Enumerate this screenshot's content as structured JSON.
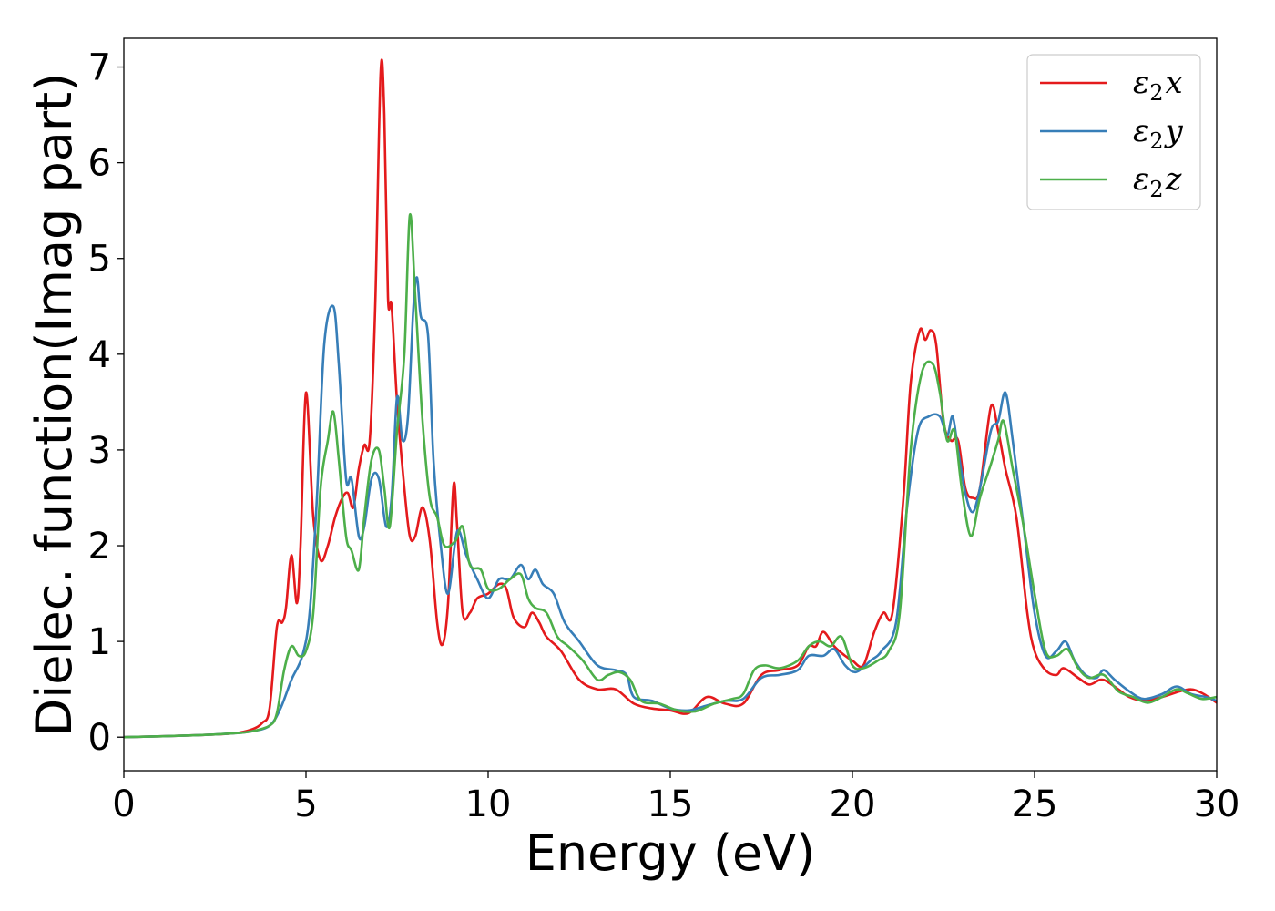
{
  "chart_data": {
    "type": "line",
    "xlabel": "Energy (eV)",
    "ylabel": "Dielec. function(Imag part)",
    "xlim": [
      0,
      30
    ],
    "ylim": [
      -0.35,
      7.3
    ],
    "xticks": [
      0,
      5,
      10,
      15,
      20,
      25,
      30
    ],
    "yticks": [
      0,
      1,
      2,
      3,
      4,
      5,
      6,
      7
    ],
    "xtick_labels": [
      "0",
      "5",
      "10",
      "15",
      "20",
      "25",
      "30"
    ],
    "ytick_labels": [
      "0",
      "1",
      "2",
      "3",
      "4",
      "5",
      "6",
      "7"
    ],
    "grid": false,
    "legend": "top-right",
    "series": [
      {
        "name": "ε₂x",
        "legend_base": "ε",
        "legend_sub": "2",
        "legend_tail": "x",
        "color": "#e41a1c",
        "points": [
          [
            0,
            0
          ],
          [
            2,
            0.02
          ],
          [
            3,
            0.04
          ],
          [
            3.5,
            0.08
          ],
          [
            3.8,
            0.15
          ],
          [
            4.0,
            0.3
          ],
          [
            4.2,
            1.15
          ],
          [
            4.35,
            1.2
          ],
          [
            4.45,
            1.35
          ],
          [
            4.6,
            1.9
          ],
          [
            4.75,
            1.4
          ],
          [
            4.85,
            2.0
          ],
          [
            5.0,
            3.6
          ],
          [
            5.2,
            2.3
          ],
          [
            5.4,
            1.85
          ],
          [
            5.6,
            2.0
          ],
          [
            5.8,
            2.3
          ],
          [
            6.0,
            2.5
          ],
          [
            6.15,
            2.55
          ],
          [
            6.3,
            2.4
          ],
          [
            6.45,
            2.8
          ],
          [
            6.6,
            3.05
          ],
          [
            6.75,
            3.1
          ],
          [
            6.9,
            4.5
          ],
          [
            7.05,
            6.95
          ],
          [
            7.15,
            6.5
          ],
          [
            7.25,
            4.6
          ],
          [
            7.35,
            4.5
          ],
          [
            7.5,
            3.5
          ],
          [
            7.7,
            2.6
          ],
          [
            7.85,
            2.1
          ],
          [
            8.0,
            2.1
          ],
          [
            8.2,
            2.4
          ],
          [
            8.4,
            2.05
          ],
          [
            8.6,
            1.2
          ],
          [
            8.75,
            0.97
          ],
          [
            8.9,
            1.4
          ],
          [
            9.05,
            2.63
          ],
          [
            9.15,
            2.2
          ],
          [
            9.3,
            1.3
          ],
          [
            9.5,
            1.3
          ],
          [
            9.7,
            1.45
          ],
          [
            10.0,
            1.5
          ],
          [
            10.3,
            1.6
          ],
          [
            10.5,
            1.55
          ],
          [
            10.7,
            1.25
          ],
          [
            11.0,
            1.15
          ],
          [
            11.2,
            1.3
          ],
          [
            11.4,
            1.2
          ],
          [
            11.6,
            1.05
          ],
          [
            12.0,
            0.9
          ],
          [
            12.5,
            0.6
          ],
          [
            13.0,
            0.5
          ],
          [
            13.5,
            0.5
          ],
          [
            14.0,
            0.35
          ],
          [
            14.5,
            0.3
          ],
          [
            15.0,
            0.28
          ],
          [
            15.5,
            0.25
          ],
          [
            16.0,
            0.42
          ],
          [
            16.5,
            0.35
          ],
          [
            17.0,
            0.35
          ],
          [
            17.5,
            0.65
          ],
          [
            18.0,
            0.7
          ],
          [
            18.5,
            0.75
          ],
          [
            18.8,
            0.95
          ],
          [
            19.0,
            0.95
          ],
          [
            19.2,
            1.1
          ],
          [
            19.5,
            0.95
          ],
          [
            19.8,
            0.85
          ],
          [
            20.0,
            0.8
          ],
          [
            20.3,
            0.75
          ],
          [
            20.6,
            1.1
          ],
          [
            20.85,
            1.3
          ],
          [
            21.1,
            1.3
          ],
          [
            21.4,
            2.5
          ],
          [
            21.6,
            3.7
          ],
          [
            21.85,
            4.25
          ],
          [
            22.0,
            4.15
          ],
          [
            22.15,
            4.25
          ],
          [
            22.3,
            4.1
          ],
          [
            22.5,
            3.3
          ],
          [
            22.7,
            3.1
          ],
          [
            22.9,
            3.1
          ],
          [
            23.1,
            2.6
          ],
          [
            23.3,
            2.5
          ],
          [
            23.5,
            2.6
          ],
          [
            23.8,
            3.45
          ],
          [
            24.0,
            3.2
          ],
          [
            24.2,
            2.8
          ],
          [
            24.5,
            2.3
          ],
          [
            24.8,
            1.3
          ],
          [
            25.0,
            0.9
          ],
          [
            25.3,
            0.7
          ],
          [
            25.6,
            0.65
          ],
          [
            25.8,
            0.72
          ],
          [
            26.2,
            0.62
          ],
          [
            26.5,
            0.55
          ],
          [
            26.8,
            0.6
          ],
          [
            27.0,
            0.58
          ],
          [
            27.3,
            0.5
          ],
          [
            27.6,
            0.42
          ],
          [
            28.0,
            0.38
          ],
          [
            28.5,
            0.42
          ],
          [
            29.0,
            0.48
          ],
          [
            29.3,
            0.5
          ],
          [
            29.6,
            0.46
          ],
          [
            30,
            0.36
          ]
        ]
      },
      {
        "name": "ε₂y",
        "legend_base": "ε",
        "legend_sub": "2",
        "legend_tail": "y",
        "color": "#377eb8",
        "points": [
          [
            0,
            0
          ],
          [
            2,
            0.02
          ],
          [
            3,
            0.04
          ],
          [
            3.5,
            0.06
          ],
          [
            4.0,
            0.12
          ],
          [
            4.3,
            0.3
          ],
          [
            4.6,
            0.6
          ],
          [
            4.9,
            0.85
          ],
          [
            5.1,
            1.3
          ],
          [
            5.3,
            2.5
          ],
          [
            5.5,
            4.1
          ],
          [
            5.75,
            4.5
          ],
          [
            5.9,
            3.9
          ],
          [
            6.1,
            2.7
          ],
          [
            6.25,
            2.7
          ],
          [
            6.45,
            2.1
          ],
          [
            6.6,
            2.2
          ],
          [
            6.8,
            2.7
          ],
          [
            7.0,
            2.7
          ],
          [
            7.2,
            2.2
          ],
          [
            7.35,
            2.5
          ],
          [
            7.5,
            3.55
          ],
          [
            7.65,
            3.1
          ],
          [
            7.8,
            3.35
          ],
          [
            7.95,
            4.5
          ],
          [
            8.05,
            4.8
          ],
          [
            8.15,
            4.4
          ],
          [
            8.35,
            4.2
          ],
          [
            8.5,
            2.9
          ],
          [
            8.7,
            2.0
          ],
          [
            8.9,
            1.5
          ],
          [
            9.15,
            2.15
          ],
          [
            9.4,
            1.9
          ],
          [
            9.7,
            1.65
          ],
          [
            10.0,
            1.45
          ],
          [
            10.3,
            1.65
          ],
          [
            10.6,
            1.65
          ],
          [
            10.9,
            1.8
          ],
          [
            11.1,
            1.65
          ],
          [
            11.3,
            1.75
          ],
          [
            11.5,
            1.6
          ],
          [
            11.8,
            1.5
          ],
          [
            12.1,
            1.2
          ],
          [
            12.5,
            1.0
          ],
          [
            13.0,
            0.75
          ],
          [
            13.5,
            0.7
          ],
          [
            13.8,
            0.65
          ],
          [
            14.0,
            0.42
          ],
          [
            14.5,
            0.38
          ],
          [
            15.0,
            0.3
          ],
          [
            15.5,
            0.28
          ],
          [
            16.0,
            0.33
          ],
          [
            16.5,
            0.38
          ],
          [
            17.0,
            0.4
          ],
          [
            17.5,
            0.62
          ],
          [
            18.0,
            0.65
          ],
          [
            18.5,
            0.7
          ],
          [
            18.8,
            0.85
          ],
          [
            19.2,
            0.85
          ],
          [
            19.5,
            0.92
          ],
          [
            19.8,
            0.75
          ],
          [
            20.1,
            0.68
          ],
          [
            20.5,
            0.8
          ],
          [
            20.8,
            0.9
          ],
          [
            21.2,
            1.2
          ],
          [
            21.5,
            2.4
          ],
          [
            21.8,
            3.2
          ],
          [
            22.1,
            3.35
          ],
          [
            22.4,
            3.35
          ],
          [
            22.6,
            3.15
          ],
          [
            22.75,
            3.35
          ],
          [
            22.9,
            3.0
          ],
          [
            23.1,
            2.55
          ],
          [
            23.3,
            2.35
          ],
          [
            23.5,
            2.6
          ],
          [
            23.8,
            3.2
          ],
          [
            24.0,
            3.3
          ],
          [
            24.2,
            3.6
          ],
          [
            24.4,
            3.1
          ],
          [
            24.7,
            2.2
          ],
          [
            25.0,
            1.3
          ],
          [
            25.3,
            0.85
          ],
          [
            25.6,
            0.9
          ],
          [
            25.85,
            1.0
          ],
          [
            26.1,
            0.8
          ],
          [
            26.4,
            0.65
          ],
          [
            26.7,
            0.62
          ],
          [
            26.9,
            0.7
          ],
          [
            27.2,
            0.6
          ],
          [
            27.6,
            0.48
          ],
          [
            28.0,
            0.4
          ],
          [
            28.5,
            0.45
          ],
          [
            28.9,
            0.53
          ],
          [
            29.3,
            0.45
          ],
          [
            29.7,
            0.42
          ],
          [
            30,
            0.38
          ]
        ]
      },
      {
        "name": "ε₂z",
        "legend_base": "ε",
        "legend_sub": "2",
        "legend_tail": "z",
        "color": "#4daf4a",
        "points": [
          [
            0,
            0
          ],
          [
            2,
            0.02
          ],
          [
            3,
            0.04
          ],
          [
            3.5,
            0.06
          ],
          [
            4.0,
            0.12
          ],
          [
            4.2,
            0.25
          ],
          [
            4.4,
            0.7
          ],
          [
            4.6,
            0.95
          ],
          [
            4.8,
            0.85
          ],
          [
            5.0,
            0.9
          ],
          [
            5.2,
            1.3
          ],
          [
            5.4,
            2.6
          ],
          [
            5.6,
            3.1
          ],
          [
            5.75,
            3.4
          ],
          [
            5.9,
            2.9
          ],
          [
            6.1,
            2.1
          ],
          [
            6.25,
            1.95
          ],
          [
            6.45,
            1.75
          ],
          [
            6.6,
            2.3
          ],
          [
            6.8,
            2.9
          ],
          [
            7.0,
            3.0
          ],
          [
            7.15,
            2.6
          ],
          [
            7.3,
            2.2
          ],
          [
            7.5,
            3.2
          ],
          [
            7.7,
            4.0
          ],
          [
            7.85,
            5.45
          ],
          [
            8.0,
            4.6
          ],
          [
            8.2,
            3.3
          ],
          [
            8.4,
            2.5
          ],
          [
            8.6,
            2.3
          ],
          [
            8.8,
            2.0
          ],
          [
            9.1,
            2.05
          ],
          [
            9.3,
            2.2
          ],
          [
            9.5,
            1.8
          ],
          [
            9.8,
            1.75
          ],
          [
            10.0,
            1.55
          ],
          [
            10.3,
            1.55
          ],
          [
            10.6,
            1.65
          ],
          [
            10.9,
            1.7
          ],
          [
            11.1,
            1.45
          ],
          [
            11.3,
            1.35
          ],
          [
            11.6,
            1.3
          ],
          [
            11.9,
            1.05
          ],
          [
            12.2,
            0.95
          ],
          [
            12.6,
            0.8
          ],
          [
            13.0,
            0.6
          ],
          [
            13.3,
            0.65
          ],
          [
            13.6,
            0.68
          ],
          [
            13.9,
            0.6
          ],
          [
            14.2,
            0.38
          ],
          [
            14.7,
            0.35
          ],
          [
            15.2,
            0.28
          ],
          [
            15.7,
            0.27
          ],
          [
            16.2,
            0.35
          ],
          [
            16.7,
            0.4
          ],
          [
            17.0,
            0.45
          ],
          [
            17.3,
            0.7
          ],
          [
            17.6,
            0.75
          ],
          [
            18.0,
            0.72
          ],
          [
            18.5,
            0.8
          ],
          [
            18.8,
            0.95
          ],
          [
            19.1,
            1.0
          ],
          [
            19.4,
            0.95
          ],
          [
            19.7,
            1.05
          ],
          [
            20.0,
            0.75
          ],
          [
            20.3,
            0.72
          ],
          [
            20.7,
            0.8
          ],
          [
            21.0,
            0.9
          ],
          [
            21.3,
            1.3
          ],
          [
            21.6,
            3.0
          ],
          [
            21.9,
            3.8
          ],
          [
            22.2,
            3.9
          ],
          [
            22.4,
            3.6
          ],
          [
            22.6,
            3.1
          ],
          [
            22.8,
            3.2
          ],
          [
            23.0,
            2.6
          ],
          [
            23.25,
            2.1
          ],
          [
            23.5,
            2.5
          ],
          [
            23.8,
            2.85
          ],
          [
            24.0,
            3.1
          ],
          [
            24.15,
            3.3
          ],
          [
            24.4,
            2.8
          ],
          [
            24.7,
            2.2
          ],
          [
            25.0,
            1.5
          ],
          [
            25.3,
            0.9
          ],
          [
            25.6,
            0.85
          ],
          [
            25.9,
            0.92
          ],
          [
            26.2,
            0.72
          ],
          [
            26.5,
            0.62
          ],
          [
            26.9,
            0.65
          ],
          [
            27.3,
            0.48
          ],
          [
            27.7,
            0.42
          ],
          [
            28.1,
            0.36
          ],
          [
            28.5,
            0.42
          ],
          [
            28.9,
            0.5
          ],
          [
            29.2,
            0.46
          ],
          [
            29.6,
            0.4
          ],
          [
            30,
            0.42
          ]
        ]
      }
    ]
  }
}
